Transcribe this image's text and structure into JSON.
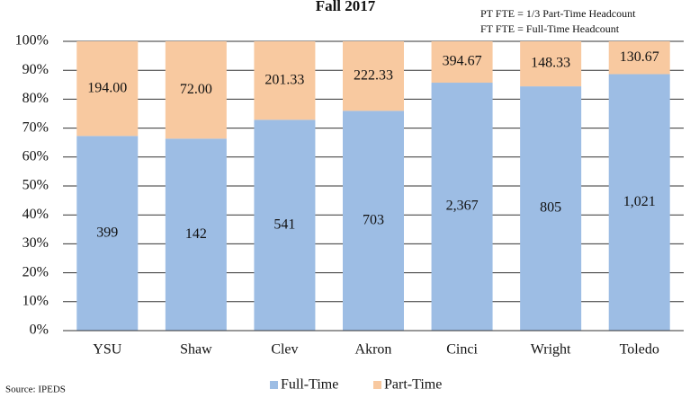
{
  "chart_data": {
    "type": "bar",
    "stacked": "percent",
    "title": "Fall 2017",
    "notes": [
      "PT FTE = 1/3 Part-Time Headcount",
      "FT FTE = Full-Time Headcount"
    ],
    "source": "Source: IPEDS",
    "categories": [
      "YSU",
      "Shaw",
      "Clev",
      "Akron",
      "Cinci",
      "Wright",
      "Toledo"
    ],
    "series": [
      {
        "name": "Full-Time",
        "color": "#9dbde4",
        "values": [
          399,
          142,
          541,
          703,
          2367,
          805,
          1021
        ],
        "value_labels": [
          "399",
          "142",
          "541",
          "703",
          "2,367",
          "805",
          "1,021"
        ]
      },
      {
        "name": "Part-Time",
        "color": "#f8c9a0",
        "values": [
          194,
          72,
          201.33,
          222.33,
          394.67,
          148.33,
          130.67
        ],
        "value_labels": [
          "194.00",
          "72.00",
          "201.33",
          "222.33",
          "394.67",
          "148.33",
          "130.67"
        ]
      }
    ],
    "ylim": [
      0,
      100
    ],
    "yticks": [
      {
        "value": 0,
        "label": "0%"
      },
      {
        "value": 10,
        "label": "10%"
      },
      {
        "value": 20,
        "label": "20%"
      },
      {
        "value": 30,
        "label": "30%"
      },
      {
        "value": 40,
        "label": "40%"
      },
      {
        "value": 50,
        "label": "50%"
      },
      {
        "value": 60,
        "label": "60%"
      },
      {
        "value": 70,
        "label": "70%"
      },
      {
        "value": 80,
        "label": "80%"
      },
      {
        "value": 90,
        "label": "90%"
      },
      {
        "value": 100,
        "label": "100%"
      }
    ],
    "grid": true
  }
}
